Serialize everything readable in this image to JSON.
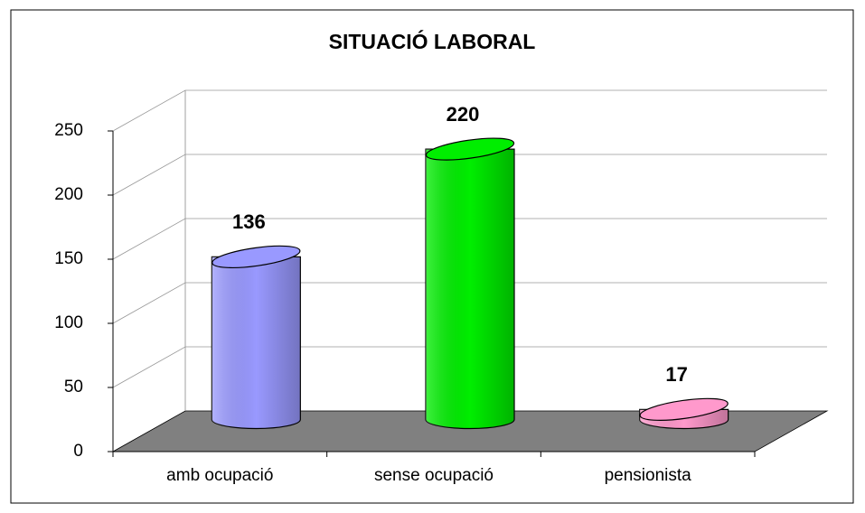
{
  "chart_data": {
    "type": "bar3d",
    "title": "SITUACIÓ LABORAL",
    "categories": [
      "amb ocupació",
      "sense ocupació",
      "pensionista"
    ],
    "values": [
      136,
      220,
      17
    ],
    "colors": [
      "#9999ff",
      "#00ee00",
      "#ff99cc"
    ],
    "ylim": [
      0,
      250
    ],
    "yticks": [
      0,
      50,
      100,
      150,
      200,
      250
    ],
    "grid": true
  }
}
